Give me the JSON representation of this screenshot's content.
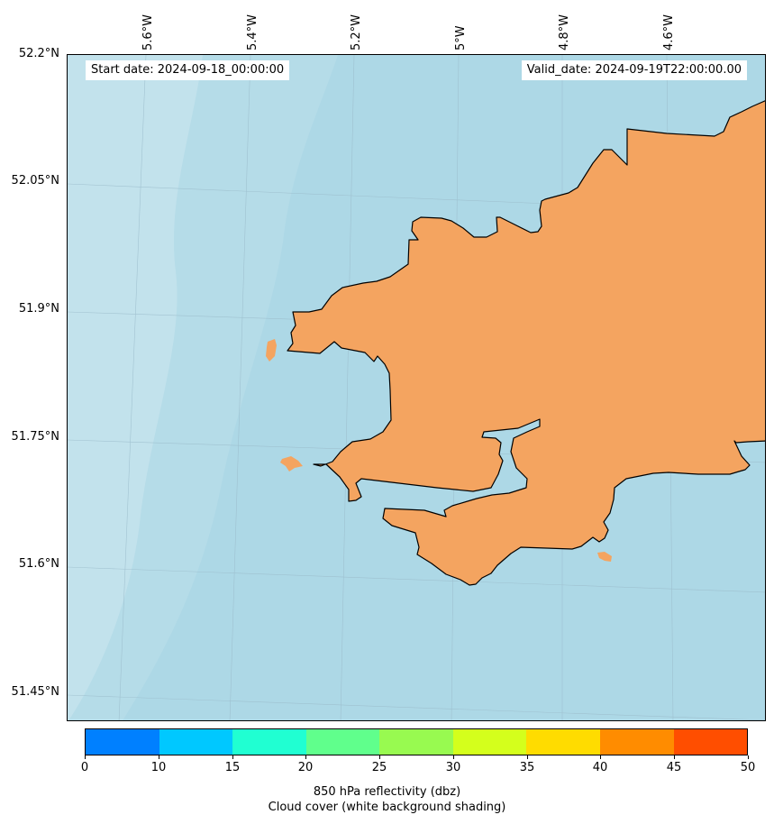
{
  "map": {
    "start_date": "Start date: 2024-09-18_00:00:00",
    "valid_date": "Valid_date: 2024-09-19T22:00:00.00",
    "ocean_color": "#add8e6",
    "land_color": "#f4a460",
    "coastline_color": "#000000",
    "longitude_labels": [
      "5.6°W",
      "5.4°W",
      "5.2°W",
      "5°W",
      "4.8°W",
      "4.6°W"
    ],
    "latitude_labels": [
      "52.2°N",
      "52.05°N",
      "51.9°N",
      "51.75°N",
      "51.6°N",
      "51.45°N"
    ]
  },
  "colorbar": {
    "tick_labels": [
      "0",
      "10",
      "15",
      "20",
      "25",
      "30",
      "35",
      "40",
      "45",
      "50"
    ],
    "colors": [
      "#0080ff",
      "#00c8ff",
      "#20ffd2",
      "#60ff8c",
      "#98fa50",
      "#d4ff1c",
      "#ffdc00",
      "#ff8c00",
      "#ff4e00"
    ],
    "label_line1": "850 hPa reflectivity (dbz)",
    "label_line2": "Cloud cover (white background shading)"
  }
}
